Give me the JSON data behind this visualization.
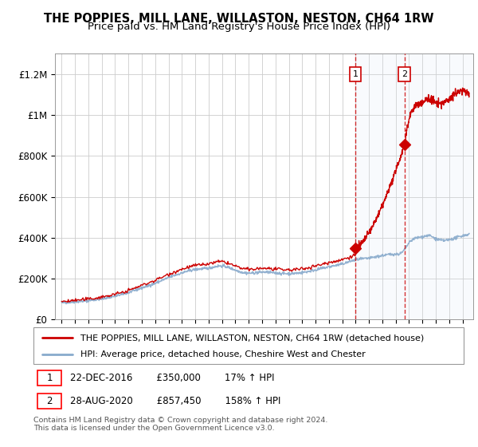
{
  "title": "THE POPPIES, MILL LANE, WILLASTON, NESTON, CH64 1RW",
  "subtitle": "Price paid vs. HM Land Registry's House Price Index (HPI)",
  "title_fontsize": 10.5,
  "subtitle_fontsize": 9.5,
  "ylim": [
    0,
    1300000
  ],
  "yticks": [
    0,
    200000,
    400000,
    600000,
    800000,
    1000000,
    1200000
  ],
  "ytick_labels": [
    "£0",
    "£200K",
    "£400K",
    "£600K",
    "£800K",
    "£1M",
    "£1.2M"
  ],
  "background_color": "#ffffff",
  "plot_bg_color": "#ffffff",
  "grid_color": "#cccccc",
  "legend_label_property": "THE POPPIES, MILL LANE, WILLASTON, NESTON, CH64 1RW (detached house)",
  "legend_label_hpi": "HPI: Average price, detached house, Cheshire West and Chester",
  "property_color": "#cc0000",
  "hpi_color": "#88aacc",
  "shade_color": "#dde8f5",
  "transaction1_year": 2016.97,
  "transaction1_price": 350000,
  "transaction1_label": "1",
  "transaction1_date": "22-DEC-2016",
  "transaction1_pct": "17%",
  "transaction2_year": 2020.66,
  "transaction2_price": 857450,
  "transaction2_label": "2",
  "transaction2_date": "28-AUG-2020",
  "transaction2_pct": "158%",
  "footnote": "Contains HM Land Registry data © Crown copyright and database right 2024.\nThis data is licensed under the Open Government Licence v3.0.",
  "xlim_start": 1994.5,
  "xlim_end": 2025.8
}
